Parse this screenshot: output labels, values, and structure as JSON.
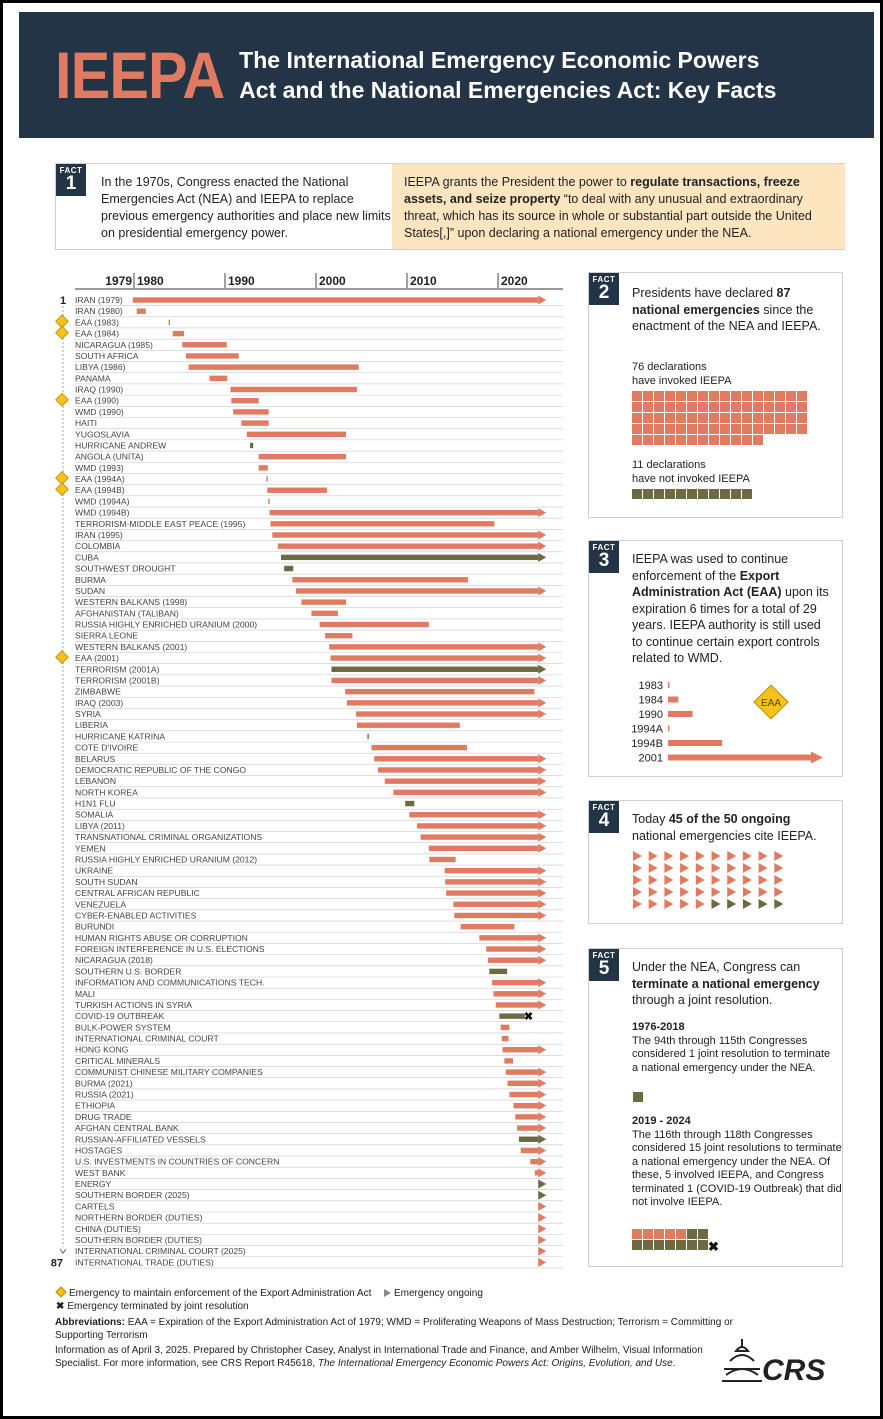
{
  "header": {
    "logo": "IEEPA",
    "title_line1": "The International Emergency Economic Powers",
    "title_line2": "Act and the National Emergencies Act: Key Facts"
  },
  "fact_label": "FACT",
  "fact1": {
    "num": "1",
    "left": "In the 1970s, Congress enacted the National Emergencies Act (NEA) and IEEPA to replace previous emergency authorities and place new limits on presidential emergency power.",
    "right_a": "IEEPA grants the President the power to ",
    "right_bold": "regulate transactions, freeze assets, and seize property",
    "right_b": " “to deal with any unusual and extraordinary threat, which has its source in whole or substantial part outside the United States[,]” upon declaring a national emergency under the NEA."
  },
  "fact2": {
    "num": "2",
    "a": "Presidents have declared ",
    "bold": "87 national emergencies",
    "b": " since the enactment of the NEA and IEEPA.",
    "invoked_label_1": "76 declarations",
    "invoked_label_2": "have invoked IEEPA",
    "invoked_count": 76,
    "not_label_1": "11 declarations",
    "not_label_2": "have not invoked IEEPA",
    "not_count": 11
  },
  "fact3": {
    "num": "3",
    "a": "IEEPA was used to continue enforcement of the ",
    "bold": "Export Administration Act (EAA)",
    "b": " upon its expiration 6 times for a total of 29 years. IEEPA authority is still used to continue certain export controls related to WMD.",
    "badge": "EAA",
    "bars": [
      {
        "label": "1983",
        "years": 0.1
      },
      {
        "label": "1984",
        "years": 1.25
      },
      {
        "label": "1990",
        "years": 3
      },
      {
        "label": "1994A",
        "years": 0.1
      },
      {
        "label": "1994B",
        "years": 6.6
      },
      {
        "label": "2001",
        "years": 23.6,
        "ongoing": true
      }
    ]
  },
  "fact4": {
    "num": "4",
    "a": "Today ",
    "bold": "45 of the 50 ongoing",
    "b": " national emergencies cite IEEPA.",
    "ieepa_count": 45,
    "total": 50
  },
  "fact5": {
    "num": "5",
    "a": "Under the NEA, Congress can ",
    "bold": "terminate a national emergency",
    "b": " through a  joint resolution.",
    "p1_head": "1976-2018",
    "p1_text": "The 94th through 115th Congresses considered 1 joint resolution to terminate a national emergency under the NEA.",
    "p1_count": 1,
    "p2_head": "2019 - 2024",
    "p2_text": "The 116th through 118th Congresses considered 15 joint resolutions to terminate a national emergency under the NEA. Of these, 5 involved IEEPA, and Congress terminated 1 (COVID-19 Outbreak) that did not involve IEEPA.",
    "p2_ieepa": 5,
    "p2_total": 15
  },
  "colors": {
    "navy": "#243447",
    "ieepa": "#e07b62",
    "non_ieepa": "#6b6a42",
    "eaa": "#f4c21b",
    "highlight": "#fde5c0"
  },
  "legend": {
    "eaa": "Emergency to maintain enforcement of the Export Administration Act",
    "ongoing": "Emergency ongoing",
    "terminated": "Emergency terminated by joint resolution"
  },
  "abbr_head": "Abbreviations:",
  "abbr_text": " EAA = Expiration of the Export Administration Act of 1979; WMD = Proliferating Weapons of Mass Destruction; Terrorism = Committing or Supporting Terrorism",
  "info_a": "Information as of April 3, 2025. Prepared by Christopher Casey, Analyst in International Trade and Finance, and Amber Wilhelm, Visual Information Specialist. For more information, see CRS Report R45618, ",
  "info_italic": "The International Emergency Economic Powers Act: Origins, Evolution, and Use",
  "info_b": ".",
  "crs_logo": "CRS",
  "chart_data": {
    "type": "timeline",
    "axis_ticks": [
      "1979",
      "1980",
      "1990",
      "2000",
      "2010",
      "2020"
    ],
    "axis_tick_years": [
      1979,
      1980,
      1990,
      2000,
      2010,
      2020
    ],
    "xlim": [
      1979.8,
      2025.3
    ],
    "first_label": "1",
    "last_label": "87",
    "row_format": [
      "label",
      "start_year",
      "end_year_or_ongoing",
      "type (ieepa/non_ieepa)",
      "flag (eaa/terminated)"
    ],
    "rows": [
      [
        "IRAN (1979)",
        1979.86,
        "ongoing",
        "ieepa",
        ""
      ],
      [
        "IRAN (1980)",
        1980.3,
        1981.3,
        "ieepa",
        ""
      ],
      [
        "EAA (1983)",
        1983.8,
        1983.9,
        "ieepa",
        "eaa"
      ],
      [
        "EAA (1984)",
        1984.25,
        1985.5,
        "ieepa",
        "eaa"
      ],
      [
        "NICARAGUA (1985)",
        1985.3,
        1990.2,
        "ieepa",
        ""
      ],
      [
        "SOUTH AFRICA",
        1985.7,
        1991.5,
        "ieepa",
        ""
      ],
      [
        "LIBYA (1986)",
        1986.0,
        2004.7,
        "ieepa",
        ""
      ],
      [
        "PANAMA",
        1988.3,
        1990.25,
        "ieepa",
        ""
      ],
      [
        "IRAQ (1990)",
        1990.6,
        2004.5,
        "ieepa",
        ""
      ],
      [
        "EAA (1990)",
        1990.7,
        1993.7,
        "ieepa",
        "eaa"
      ],
      [
        "WMD (1990)",
        1990.9,
        1994.8,
        "ieepa",
        ""
      ],
      [
        "HAITI",
        1991.8,
        1994.8,
        "ieepa",
        ""
      ],
      [
        "YUGOSLAVIA",
        1992.4,
        2003.3,
        "ieepa",
        ""
      ],
      [
        "HURRICANE ANDREW",
        1992.75,
        1993.1,
        "non_ieepa",
        ""
      ],
      [
        "ANGOLA (UNITA)",
        1993.7,
        2003.3,
        "ieepa",
        ""
      ],
      [
        "WMD (1993)",
        1993.7,
        1994.7,
        "ieepa",
        ""
      ],
      [
        "EAA (1994A)",
        1994.55,
        1994.65,
        "ieepa",
        "eaa"
      ],
      [
        "EAA (1994B)",
        1994.65,
        2001.2,
        "ieepa",
        "eaa"
      ],
      [
        "WMD (1994A)",
        1994.75,
        1994.85,
        "ieepa",
        ""
      ],
      [
        "WMD (1994B)",
        1994.9,
        "ongoing",
        "ieepa",
        ""
      ],
      [
        "TERRORISM-MIDDLE EAST PEACE (1995)",
        1995.0,
        2019.6,
        "ieepa",
        ""
      ],
      [
        "IRAN (1995)",
        1995.2,
        "ongoing",
        "ieepa",
        ""
      ],
      [
        "COLOMBIA",
        1995.8,
        "ongoing",
        "ieepa",
        ""
      ],
      [
        "CUBA",
        1996.15,
        "ongoing",
        "non_ieepa",
        ""
      ],
      [
        "SOUTHWEST DROUGHT",
        1996.5,
        1997.5,
        "non_ieepa",
        ""
      ],
      [
        "BURMA",
        1997.4,
        2016.7,
        "ieepa",
        ""
      ],
      [
        "SUDAN",
        1997.8,
        "ongoing",
        "ieepa",
        ""
      ],
      [
        "WESTERN BALKANS (1998)",
        1998.4,
        2003.3,
        "ieepa",
        ""
      ],
      [
        "AFGHANISTAN (TALIBAN)",
        1999.5,
        2002.4,
        "ieepa",
        ""
      ],
      [
        "RUSSIA HIGHLY ENRICHED URANIUM (2000)",
        2000.4,
        2012.4,
        "ieepa",
        ""
      ],
      [
        "SIERRA LEONE",
        2001.0,
        2004.0,
        "ieepa",
        ""
      ],
      [
        "WESTERN BALKANS (2001)",
        2001.45,
        "ongoing",
        "ieepa",
        ""
      ],
      [
        "EAA (2001)",
        2001.6,
        "ongoing",
        "ieepa",
        "eaa"
      ],
      [
        "TERRORISM (2001A)",
        2001.7,
        "ongoing",
        "non_ieepa",
        ""
      ],
      [
        "TERRORISM (2001B)",
        2001.7,
        "ongoing",
        "ieepa",
        ""
      ],
      [
        "ZIMBABWE",
        2003.2,
        2024.0,
        "ieepa",
        ""
      ],
      [
        "IRAQ (2003)",
        2003.4,
        "ongoing",
        "ieepa",
        ""
      ],
      [
        "SYRIA",
        2004.4,
        "ongoing",
        "ieepa",
        ""
      ],
      [
        "LIBERIA",
        2004.5,
        2015.8,
        "ieepa",
        ""
      ],
      [
        "HURRICANE KATRINA",
        2005.65,
        2005.75,
        "non_ieepa",
        ""
      ],
      [
        "COTE D'IVOIRE",
        2006.1,
        2016.6,
        "ieepa",
        ""
      ],
      [
        "BELARUS",
        2006.4,
        "ongoing",
        "ieepa",
        ""
      ],
      [
        "DEMOCRATIC REPUBLIC OF THE CONGO",
        2006.8,
        "ongoing",
        "ieepa",
        ""
      ],
      [
        "LEBANON",
        2007.55,
        "ongoing",
        "ieepa",
        ""
      ],
      [
        "NORTH KOREA",
        2008.5,
        "ongoing",
        "ieepa",
        ""
      ],
      [
        "H1N1 FLU",
        2009.8,
        2010.8,
        "non_ieepa",
        ""
      ],
      [
        "SOMALIA",
        2010.25,
        "ongoing",
        "ieepa",
        ""
      ],
      [
        "LIBYA (2011)",
        2011.1,
        "ongoing",
        "ieepa",
        ""
      ],
      [
        "TRANSNATIONAL CRIMINAL ORGANIZATIONS",
        2011.5,
        "ongoing",
        "ieepa",
        ""
      ],
      [
        "YEMEN",
        2012.4,
        "ongoing",
        "ieepa",
        ""
      ],
      [
        "RUSSIA HIGHLY ENRICHED URANIUM (2012)",
        2012.45,
        2015.35,
        "ieepa",
        ""
      ],
      [
        "UKRAINE",
        2014.15,
        "ongoing",
        "ieepa",
        ""
      ],
      [
        "SOUTH SUDAN",
        2014.2,
        "ongoing",
        "ieepa",
        ""
      ],
      [
        "CENTRAL AFRICAN REPUBLIC",
        2014.3,
        "ongoing",
        "ieepa",
        ""
      ],
      [
        "VENEZUELA",
        2015.1,
        "ongoing",
        "ieepa",
        ""
      ],
      [
        "CYBER-ENABLED ACTIVITIES",
        2015.2,
        "ongoing",
        "ieepa",
        ""
      ],
      [
        "BURUNDI",
        2015.9,
        2021.8,
        "ieepa",
        ""
      ],
      [
        "HUMAN RIGHTS ABUSE OR CORRUPTION",
        2017.95,
        "ongoing",
        "ieepa",
        ""
      ],
      [
        "FOREIGN INTERFERENCE IN U.S. ELECTIONS",
        2018.7,
        "ongoing",
        "ieepa",
        ""
      ],
      [
        "NICARAGUA (2018)",
        2018.9,
        "ongoing",
        "ieepa",
        ""
      ],
      [
        "SOUTHERN U.S. BORDER",
        2019.05,
        2021.0,
        "non_ieepa",
        ""
      ],
      [
        "INFORMATION AND COMMUNICATIONS TECH.",
        2019.35,
        "ongoing",
        "ieepa",
        ""
      ],
      [
        "MALI",
        2019.5,
        "ongoing",
        "ieepa",
        ""
      ],
      [
        "TURKISH ACTIONS IN SYRIA",
        2019.75,
        "ongoing",
        "ieepa",
        ""
      ],
      [
        "COVID-19 OUTBREAK",
        2020.15,
        2022.95,
        "non_ieepa",
        "terminated"
      ],
      [
        "BULK-POWER SYSTEM",
        2020.3,
        2021.25,
        "ieepa",
        ""
      ],
      [
        "INTERNATIONAL CRIMINAL COURT",
        2020.4,
        2021.15,
        "ieepa",
        ""
      ],
      [
        "HONG KONG",
        2020.5,
        "ongoing",
        "ieepa",
        ""
      ],
      [
        "CRITICAL MINERALS",
        2020.7,
        2021.65,
        "ieepa",
        ""
      ],
      [
        "COMMUNIST CHINESE MILITARY COMPANIES",
        2020.85,
        "ongoing",
        "ieepa",
        ""
      ],
      [
        "BURMA (2021)",
        2021.05,
        "ongoing",
        "ieepa",
        ""
      ],
      [
        "RUSSIA (2021)",
        2021.25,
        "ongoing",
        "ieepa",
        ""
      ],
      [
        "ETHIOPIA",
        2021.7,
        "ongoing",
        "ieepa",
        ""
      ],
      [
        "DRUG TRADE",
        2021.9,
        "ongoing",
        "ieepa",
        ""
      ],
      [
        "AFGHAN CENTRAL BANK",
        2022.1,
        "ongoing",
        "ieepa",
        ""
      ],
      [
        "RUSSIAN-AFFILIATED VESSELS",
        2022.3,
        "ongoing",
        "non_ieepa",
        ""
      ],
      [
        "HOSTAGES",
        2022.5,
        "ongoing",
        "ieepa",
        ""
      ],
      [
        "U.S. INVESTMENTS IN COUNTRIES OF CONCERN",
        2023.55,
        "ongoing",
        "ieepa",
        ""
      ],
      [
        "WEST BANK",
        2024.05,
        "ongoing",
        "ieepa",
        ""
      ],
      [
        "ENERGY",
        2025.0,
        "ongoing",
        "non_ieepa",
        ""
      ],
      [
        "SOUTHERN BORDER (2025)",
        2025.05,
        "ongoing",
        "non_ieepa",
        ""
      ],
      [
        "CARTELS",
        2025.1,
        "ongoing",
        "ieepa",
        ""
      ],
      [
        "NORTHERN BORDER (DUTIES)",
        2025.1,
        "ongoing",
        "ieepa",
        ""
      ],
      [
        "CHINA (DUTIES)",
        2025.1,
        "ongoing",
        "ieepa",
        ""
      ],
      [
        "SOUTHERN BORDER (DUTIES)",
        2025.1,
        "ongoing",
        "ieepa",
        ""
      ],
      [
        "INTERNATIONAL CRIMINAL COURT (2025)",
        2025.12,
        "ongoing",
        "ieepa",
        ""
      ],
      [
        "INTERNATIONAL TRADE (DUTIES)",
        2025.15,
        "ongoing",
        "ieepa",
        ""
      ]
    ]
  }
}
